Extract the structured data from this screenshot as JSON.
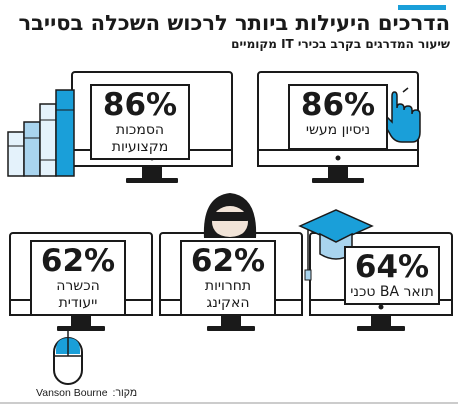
{
  "header": {
    "title": "הדרכים היעילות ביותר לרכוש השכלה בסייבר",
    "subtitle": "שיעור המדרגים בקרב בכירי IT מקומיים"
  },
  "colors": {
    "accent": "#1a9fd9",
    "ink": "#1a1a1a",
    "light_blue": "#a9d4ee",
    "pale_blue": "#e4f2fb"
  },
  "chart_data": {
    "type": "bar",
    "categories": [
      "ניסיון מעשי",
      "הסמכות מקצועיות",
      "תואר BA טכני",
      "תחרויות האקינג",
      "הכשרה ייעודית"
    ],
    "values": [
      86,
      86,
      64,
      62,
      62
    ],
    "unit": "%",
    "title": "הדרכים היעילות ביותר לרכוש השכלה בסייבר",
    "subtitle": "שיעור המדרגים בקרב בכירי IT מקומיים",
    "xlabel": "",
    "ylabel": ""
  },
  "cards": [
    {
      "value": "86%",
      "label_lines": [
        "ניסיון מעשי"
      ],
      "icon": "pointing-hand-icon"
    },
    {
      "value": "86%",
      "label_lines": [
        "הסמכות",
        "מקצועיות"
      ],
      "icon": "books-icon"
    },
    {
      "value": "64%",
      "label_lines": [
        "תואר BA טכני"
      ],
      "icon": "graduation-cap-icon"
    },
    {
      "value": "62%",
      "label_lines": [
        "תחרויות",
        "האקינג"
      ],
      "icon": "hacker-icon"
    },
    {
      "value": "62%",
      "label_lines": [
        "הכשרה",
        "ייעודית"
      ],
      "icon": "computer-mouse-icon"
    }
  ],
  "source": {
    "label": "מקור:",
    "name": "Vanson Bourne"
  }
}
